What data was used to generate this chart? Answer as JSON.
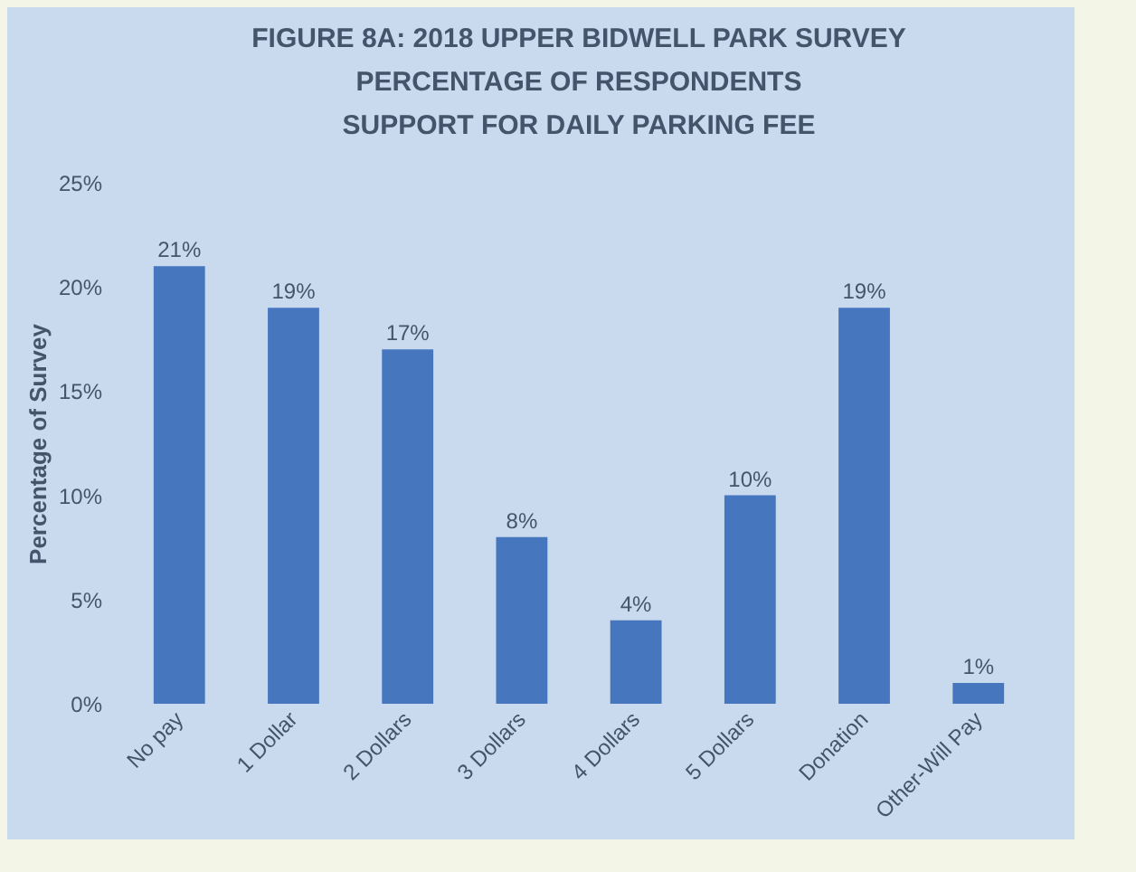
{
  "chart_data": {
    "type": "bar",
    "title": [
      "FIGURE 8A: 2018 UPPER BIDWELL PARK SURVEY",
      "PERCENTAGE OF RESPONDENTS",
      "SUPPORT FOR DAILY PARKING FEE"
    ],
    "ylabel": "Percentage of Survey",
    "categories": [
      "No pay",
      "1 Dollar",
      "2 Dollars",
      "3 Dollars",
      "4 Dollars",
      "5 Dollars",
      "Donation",
      "Other-Will Pay"
    ],
    "values": [
      21,
      19,
      17,
      8,
      4,
      10,
      19,
      1
    ],
    "value_labels": [
      "21%",
      "19%",
      "17%",
      "8%",
      "4%",
      "10%",
      "19%",
      "1%"
    ],
    "color": "#4677be",
    "ylim": [
      0,
      25
    ],
    "yticks": [
      {
        "value": 0,
        "label": "0%"
      },
      {
        "value": 5,
        "label": "5%"
      },
      {
        "value": 10,
        "label": "10%"
      },
      {
        "value": 15,
        "label": "15%"
      },
      {
        "value": 20,
        "label": "20%"
      },
      {
        "value": 25,
        "label": "25%"
      }
    ],
    "grid": false
  }
}
